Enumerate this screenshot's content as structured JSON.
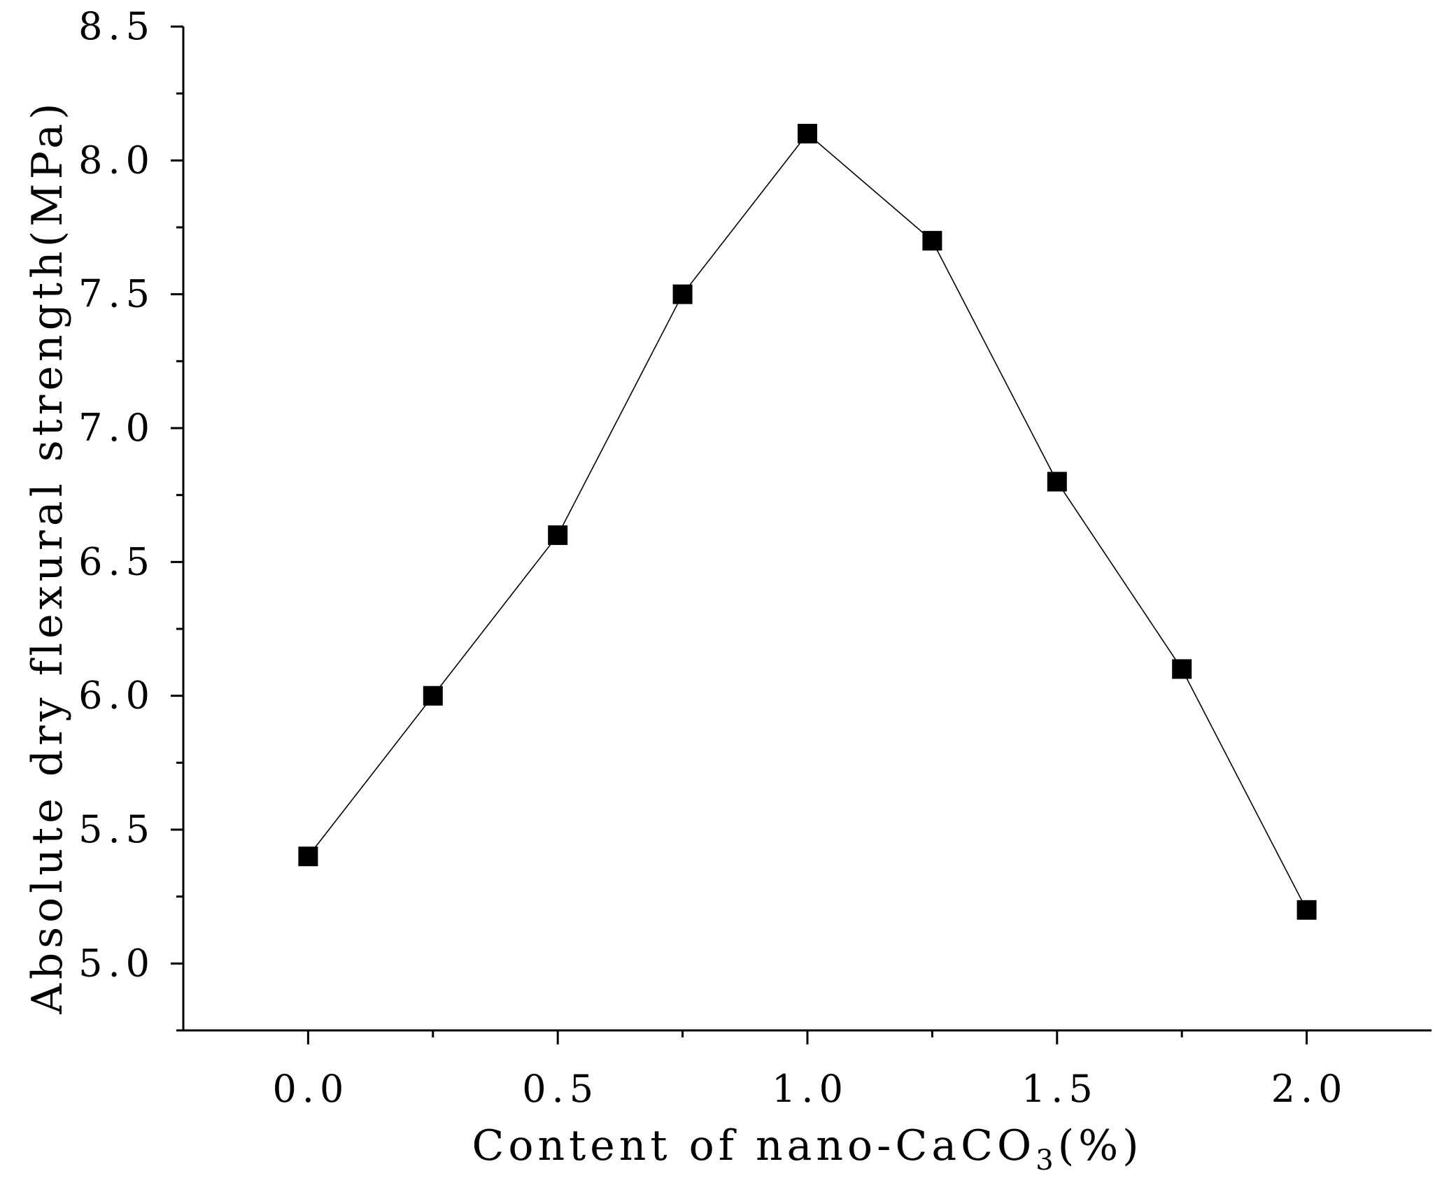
{
  "chart_data": {
    "type": "line",
    "title": "",
    "xlabel": "Content of nano-CaCO",
    "xlabel_subscript": "3",
    "xlabel_suffix": "(%)",
    "ylabel": "Absolute dry flexural strength(MPa)",
    "xlim": [
      -0.25,
      2.25
    ],
    "ylim": [
      4.75,
      8.5
    ],
    "x_ticks": [
      "0.0",
      "0.5",
      "1.0",
      "1.5",
      "2.0"
    ],
    "x_tick_values": [
      0,
      0.5,
      1.0,
      1.5,
      2.0
    ],
    "x_minor_tick_values": [
      0.25,
      0.75,
      1.25,
      1.75
    ],
    "y_ticks": [
      "5.0",
      "5.5",
      "6.0",
      "6.5",
      "7.0",
      "7.5",
      "8.0",
      "8.5"
    ],
    "y_tick_values": [
      5.0,
      5.5,
      6.0,
      6.5,
      7.0,
      7.5,
      8.0,
      8.5
    ],
    "y_minor_tick_values": [
      4.75,
      5.25,
      5.75,
      6.25,
      6.75,
      7.25,
      7.75,
      8.25
    ],
    "grid": false,
    "legend": "none",
    "marker": "square",
    "series": [
      {
        "color": "#000000",
        "x": [
          0,
          0.25,
          0.5,
          0.75,
          1.0,
          1.25,
          1.5,
          1.75,
          2.0
        ],
        "values": [
          5.4,
          6.0,
          6.6,
          7.5,
          8.1,
          7.7,
          6.8,
          6.1,
          5.2
        ]
      }
    ]
  }
}
